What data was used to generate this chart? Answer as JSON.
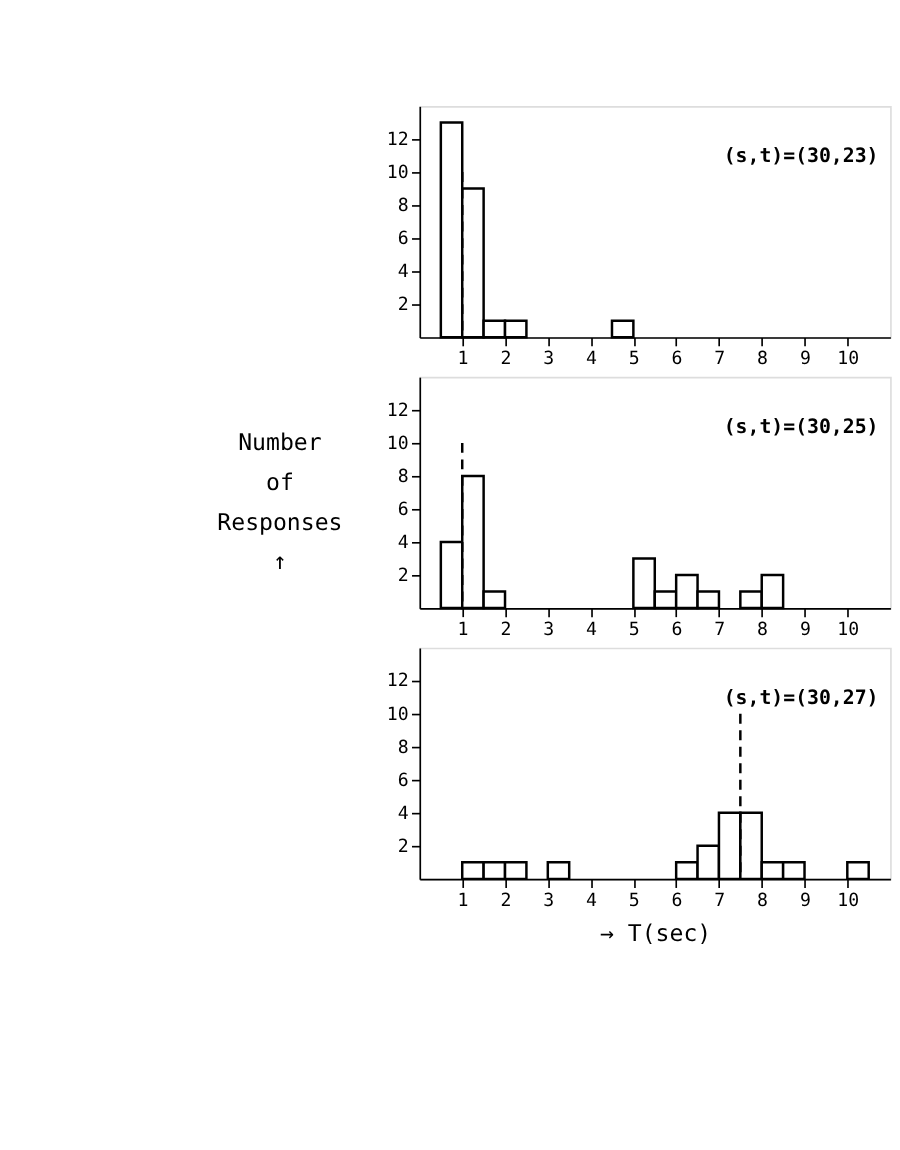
{
  "chart_data": [
    {
      "type": "histogram",
      "bins": [
        0,
        0.5,
        1,
        1.5,
        2,
        2.5,
        3,
        3.5,
        4,
        4.5,
        5,
        5.5,
        6,
        6.5,
        7,
        7.5,
        8,
        8.5,
        9,
        9.5,
        10,
        10.5,
        11
      ],
      "values": [
        0,
        13,
        9,
        1,
        1,
        0,
        0,
        0,
        0,
        1,
        0,
        0,
        0,
        0,
        0,
        0,
        0,
        0,
        0,
        0,
        0,
        0
      ],
      "color": "#ffffff",
      "xlim": [
        0,
        11
      ],
      "ylim": [
        0,
        14
      ],
      "xticks": [
        1,
        2,
        3,
        4,
        5,
        6,
        7,
        8,
        9,
        10
      ],
      "yticks": [
        2,
        4,
        6,
        8,
        10,
        12
      ],
      "annotations": [
        "(s,t)=(30,23)"
      ],
      "ref_lines": [
        {
          "axis": "x",
          "value": 1,
          "line_style": "dashed"
        }
      ],
      "grid": false
    },
    {
      "type": "histogram",
      "bins": [
        0,
        0.5,
        1,
        1.5,
        2,
        2.5,
        3,
        3.5,
        4,
        4.5,
        5,
        5.5,
        6,
        6.5,
        7,
        7.5,
        8,
        8.5,
        9,
        9.5,
        10,
        10.5,
        11
      ],
      "values": [
        0,
        4,
        8,
        1,
        0,
        0,
        0,
        0,
        0,
        0,
        3,
        1,
        2,
        1,
        0,
        1,
        2,
        0,
        0,
        0,
        0,
        0
      ],
      "color": "#ffffff",
      "xlim": [
        0,
        11
      ],
      "ylim": [
        0,
        14
      ],
      "xticks": [
        1,
        2,
        3,
        4,
        5,
        6,
        7,
        8,
        9,
        10
      ],
      "yticks": [
        2,
        4,
        6,
        8,
        10,
        12
      ],
      "ylabel": "Number of Responses ↑",
      "annotations": [
        "(s,t)=(30,25)"
      ],
      "ref_lines": [
        {
          "axis": "x",
          "value": 1,
          "line_style": "dashed"
        }
      ],
      "grid": false
    },
    {
      "type": "histogram",
      "bins": [
        0,
        0.5,
        1,
        1.5,
        2,
        2.5,
        3,
        3.5,
        4,
        4.5,
        5,
        5.5,
        6,
        6.5,
        7,
        7.5,
        8,
        8.5,
        9,
        9.5,
        10,
        10.5,
        11
      ],
      "values": [
        0,
        0,
        1,
        1,
        1,
        0,
        1,
        0,
        0,
        0,
        0,
        0,
        1,
        2,
        4,
        4,
        1,
        1,
        0,
        0,
        1,
        0
      ],
      "color": "#ffffff",
      "xlim": [
        0,
        11
      ],
      "ylim": [
        0,
        14
      ],
      "xticks": [
        1,
        2,
        3,
        4,
        5,
        6,
        7,
        8,
        9,
        10
      ],
      "yticks": [
        2,
        4,
        6,
        8,
        10,
        12
      ],
      "xlabel": "→ T(sec)",
      "annotations": [
        "(s,t)=(30,27)"
      ],
      "ref_lines": [
        {
          "axis": "x",
          "value": 7.5,
          "line_style": "dashed"
        }
      ],
      "grid": false
    }
  ]
}
